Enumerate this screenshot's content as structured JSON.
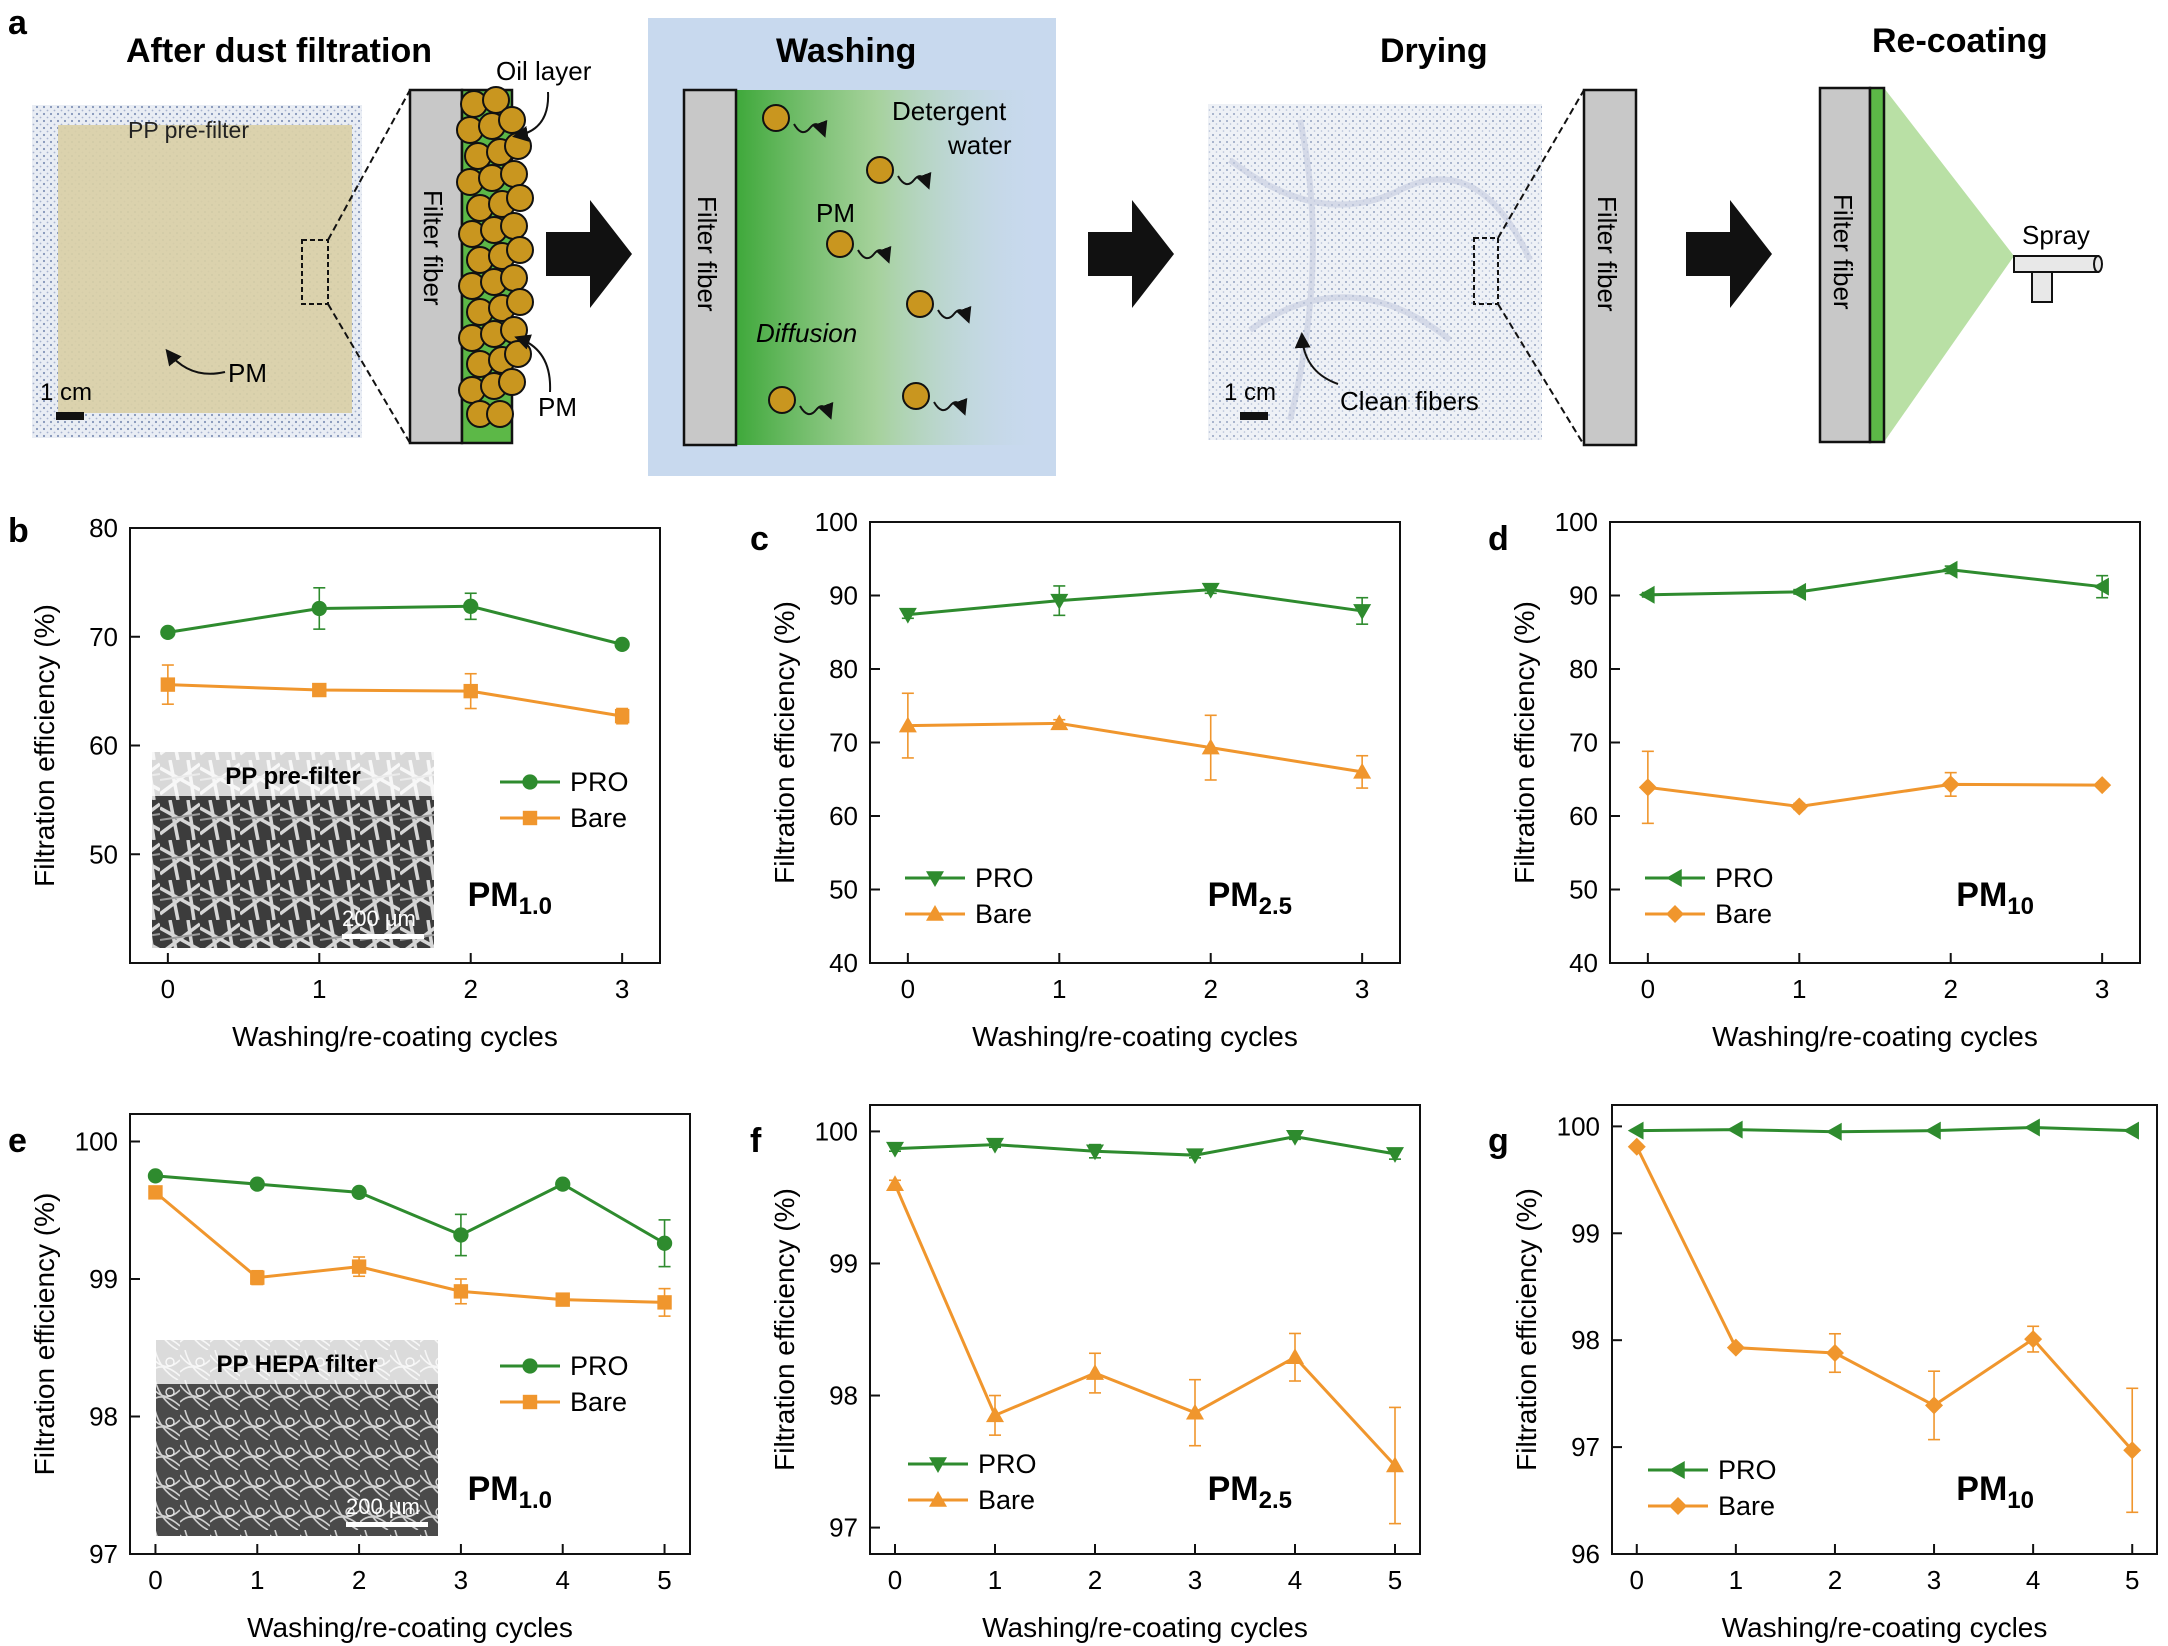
{
  "panel_a": {
    "label": "a",
    "after": {
      "title": "After dust filtration",
      "photo_label": "PP pre-filter",
      "pm_label": "PM",
      "scale_label": "1 cm",
      "fiber_label": "Filter fiber",
      "oil_label": "Oil layer",
      "pm_particle_label": "PM"
    },
    "washing": {
      "title": "Washing",
      "fiber_label": "Filter fiber",
      "detergent_line1": "Detergent",
      "detergent_line2": "water",
      "pm_label": "PM",
      "diffusion_label": "Diffusion"
    },
    "drying": {
      "title": "Drying",
      "scale_label": "1 cm",
      "clean_label": "Clean fibers",
      "fiber_label": "Filter fiber"
    },
    "recoating": {
      "title": "Re-coating",
      "fiber_label": "Filter fiber",
      "spray_label": "Spray"
    },
    "colors": {
      "oil_green": "#5cb847",
      "particle": "#c9961f",
      "wash_bg": "#c8d9ee",
      "spray_green": "#b9e0a5",
      "fiber_gray": "#c8c8c8"
    }
  },
  "chart_data": [
    {
      "panel": "b",
      "type": "line",
      "xlabel": "Washing/re-coating cycles",
      "ylabel": "Filtration efficiency (%)",
      "ylim": [
        40,
        80
      ],
      "yticks": [
        50,
        60,
        70,
        80
      ],
      "x": [
        0,
        1,
        2,
        3
      ],
      "pm_main": "PM",
      "pm_sub": "1.0",
      "inset": {
        "label": "PP pre-filter",
        "scale": "200 μm"
      },
      "series": [
        {
          "name": "PRO",
          "color": "#2e8b2e",
          "marker": "circle",
          "values": [
            70.4,
            72.6,
            72.8,
            69.3
          ],
          "errors": [
            0.3,
            1.9,
            1.2,
            0.3
          ]
        },
        {
          "name": "Bare",
          "color": "#f0962d",
          "marker": "square",
          "values": [
            65.6,
            65.1,
            65.0,
            62.7
          ],
          "errors": [
            1.8,
            0.3,
            1.6,
            0.7
          ]
        }
      ]
    },
    {
      "panel": "c",
      "type": "line",
      "xlabel": "Washing/re-coating cycles",
      "ylabel": "Filtration efficiency (%)",
      "ylim": [
        40,
        100
      ],
      "yticks": [
        40,
        50,
        60,
        70,
        80,
        90,
        100
      ],
      "x": [
        0,
        1,
        2,
        3
      ],
      "pm_main": "PM",
      "pm_sub": "2.5",
      "series": [
        {
          "name": "PRO",
          "color": "#2e8b2e",
          "marker": "tri-down",
          "values": [
            87.4,
            89.3,
            90.8,
            87.9
          ],
          "errors": [
            0.5,
            2.0,
            0.5,
            1.8
          ]
        },
        {
          "name": "Bare",
          "color": "#f0962d",
          "marker": "tri-up",
          "values": [
            72.3,
            72.6,
            69.3,
            66.0
          ],
          "errors": [
            4.4,
            0.5,
            4.4,
            2.2
          ]
        }
      ]
    },
    {
      "panel": "d",
      "type": "line",
      "xlabel": "Washing/re-coating cycles",
      "ylabel": "Filtration efficiency (%)",
      "ylim": [
        40,
        100
      ],
      "yticks": [
        40,
        50,
        60,
        70,
        80,
        90,
        100
      ],
      "x": [
        0,
        1,
        2,
        3
      ],
      "pm_main": "PM",
      "pm_sub": "10",
      "series": [
        {
          "name": "PRO",
          "color": "#2e8b2e",
          "marker": "tri-left",
          "values": [
            90.1,
            90.5,
            93.5,
            91.2
          ],
          "errors": [
            0.3,
            0.3,
            0.5,
            1.5
          ]
        },
        {
          "name": "Bare",
          "color": "#f0962d",
          "marker": "diamond",
          "values": [
            63.9,
            61.3,
            64.3,
            64.2
          ],
          "errors": [
            4.9,
            0.4,
            1.6,
            0.3
          ]
        }
      ]
    },
    {
      "panel": "e",
      "type": "line",
      "xlabel": "Washing/re-coating cycles",
      "ylabel": "Filtration efficiency (%)",
      "ylim": [
        97,
        100.2
      ],
      "yticks": [
        97,
        98,
        99,
        100
      ],
      "x": [
        0,
        1,
        2,
        3,
        4,
        5
      ],
      "pm_main": "PM",
      "pm_sub": "1.0",
      "inset": {
        "label": "PP HEPA filter",
        "scale": "200 μm"
      },
      "series": [
        {
          "name": "PRO",
          "color": "#2e8b2e",
          "marker": "circle",
          "values": [
            99.75,
            99.69,
            99.63,
            99.32,
            99.69,
            99.26
          ],
          "errors": [
            0.02,
            0.02,
            0.03,
            0.15,
            0.02,
            0.17
          ]
        },
        {
          "name": "Bare",
          "color": "#f0962d",
          "marker": "square",
          "values": [
            99.63,
            99.01,
            99.09,
            98.91,
            98.85,
            98.83
          ],
          "errors": [
            0.02,
            0.05,
            0.07,
            0.09,
            0.02,
            0.1
          ]
        }
      ]
    },
    {
      "panel": "f",
      "type": "line",
      "xlabel": "Washing/re-coating cycles",
      "ylabel": "Filtration efficiency (%)",
      "ylim": [
        96.8,
        100.2
      ],
      "yticks": [
        97,
        98,
        99,
        100
      ],
      "x": [
        0,
        1,
        2,
        3,
        4,
        5
      ],
      "pm_main": "PM",
      "pm_sub": "2.5",
      "series": [
        {
          "name": "PRO",
          "color": "#2e8b2e",
          "marker": "tri-down",
          "values": [
            99.87,
            99.9,
            99.85,
            99.82,
            99.96,
            99.83
          ],
          "errors": [
            0.02,
            0.02,
            0.05,
            0.02,
            0.02,
            0.04
          ]
        },
        {
          "name": "Bare",
          "color": "#f0962d",
          "marker": "tri-up",
          "values": [
            99.6,
            97.85,
            98.17,
            97.87,
            98.29,
            97.47
          ],
          "errors": [
            0.03,
            0.15,
            0.15,
            0.25,
            0.18,
            0.44
          ]
        }
      ]
    },
    {
      "panel": "g",
      "type": "line",
      "xlabel": "Washing/re-coating cycles",
      "ylabel": "Filtration efficiency (%)",
      "ylim": [
        96,
        100.2
      ],
      "yticks": [
        96,
        97,
        98,
        99,
        100
      ],
      "x": [
        0,
        1,
        2,
        3,
        4,
        5
      ],
      "pm_main": "PM",
      "pm_sub": "10",
      "series": [
        {
          "name": "PRO",
          "color": "#2e8b2e",
          "marker": "tri-left",
          "values": [
            99.96,
            99.97,
            99.95,
            99.96,
            99.99,
            99.96
          ],
          "errors": [
            0.01,
            0.01,
            0.01,
            0.01,
            0.01,
            0.01
          ]
        },
        {
          "name": "Bare",
          "color": "#f0962d",
          "marker": "diamond",
          "values": [
            99.81,
            97.93,
            97.88,
            97.39,
            98.01,
            96.97
          ],
          "errors": [
            0.02,
            0.02,
            0.18,
            0.32,
            0.12,
            0.58
          ]
        }
      ]
    }
  ]
}
